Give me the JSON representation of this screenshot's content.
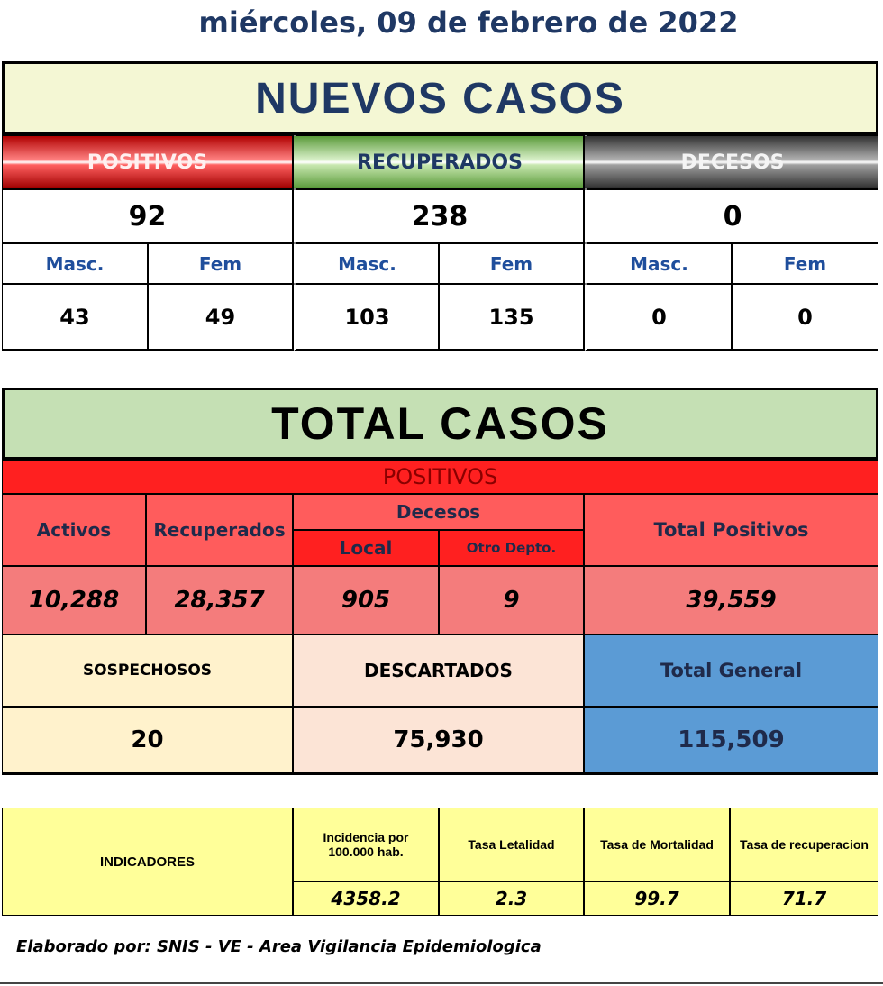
{
  "date": "miércoles, 09 de febrero de 2022",
  "nuevos_casos": {
    "title": "NUEVOS CASOS",
    "groups": [
      {
        "label": "POSITIVOS",
        "total": "92",
        "masc_label": "Masc.",
        "fem_label": "Fem",
        "masc": "43",
        "fem": "49"
      },
      {
        "label": "RECUPERADOS",
        "total": "238",
        "masc_label": "Masc.",
        "fem_label": "Fem",
        "masc": "103",
        "fem": "135"
      },
      {
        "label": "DECESOS",
        "total": "0",
        "masc_label": "Masc.",
        "fem_label": "Fem",
        "masc": "0",
        "fem": "0"
      }
    ]
  },
  "total_casos": {
    "title": "TOTAL CASOS",
    "section": "POSITIVOS",
    "headers": {
      "activos": "Activos",
      "recuperados": "Recuperados",
      "decesos": "Decesos",
      "local": "Local",
      "otro_depto": "Otro Depto.",
      "total_positivos": "Total Positivos"
    },
    "values": {
      "activos": "10,288",
      "recuperados": "28,357",
      "local": "905",
      "otro_depto": "9",
      "total_positivos": "39,559"
    },
    "summary": [
      {
        "label": "SOSPECHOSOS",
        "value": "20"
      },
      {
        "label": "DESCARTADOS",
        "value": "75,930"
      },
      {
        "label": "Total General",
        "value": "115,509"
      }
    ]
  },
  "indicadores": {
    "label": "INDICADORES",
    "items": [
      {
        "label": "Incidencia por 100.000 hab.",
        "value": "4358.2"
      },
      {
        "label": "Tasa Letalidad",
        "value": "2.3"
      },
      {
        "label": "Tasa de Mortalidad",
        "value": "99.7"
      },
      {
        "label": "Tasa de recuperacion",
        "value": "71.7"
      }
    ]
  },
  "footer": "Elaborado por:  SNIS - VE  - Area Vigilancia Epidemiologica"
}
